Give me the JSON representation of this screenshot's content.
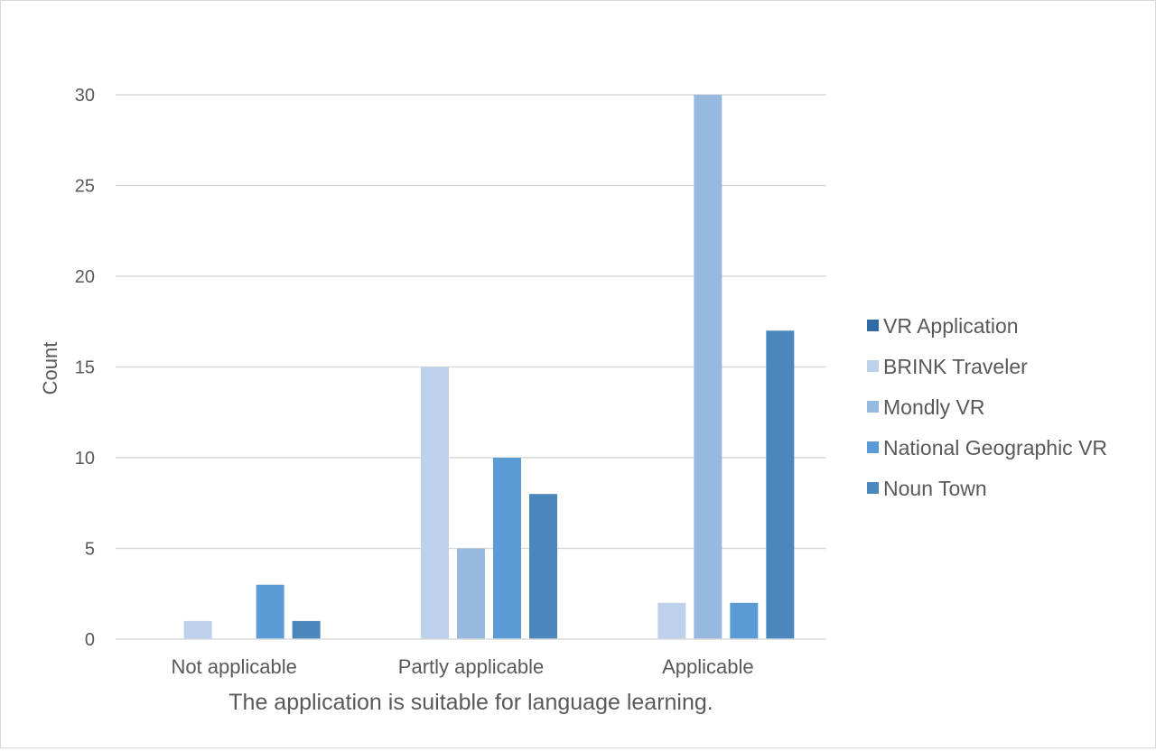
{
  "chart_data": {
    "type": "bar",
    "title": "",
    "xlabel": "The application is suitable for language learning.",
    "ylabel": "Count",
    "categories": [
      "Not applicable",
      "Partly applicable",
      "Applicable"
    ],
    "series": [
      {
        "name": "VR Application",
        "color": "#2e6aa3",
        "values": [
          0,
          0,
          0
        ]
      },
      {
        "name": "BRINK Traveler",
        "color": "#bdd1ea",
        "values": [
          1,
          15,
          2
        ]
      },
      {
        "name": "Mondly VR",
        "color": "#97b9e0",
        "values": [
          0,
          5,
          30
        ]
      },
      {
        "name": "National Geographic VR",
        "color": "#5b9bd5",
        "values": [
          3,
          10,
          2
        ]
      },
      {
        "name": "Noun Town",
        "color": "#4a87bd",
        "values": [
          1,
          8,
          17
        ]
      }
    ],
    "ylim": [
      0,
      30
    ],
    "yticks": [
      0,
      5,
      10,
      15,
      20,
      25,
      30
    ],
    "grid": true,
    "legend_position": "right"
  }
}
